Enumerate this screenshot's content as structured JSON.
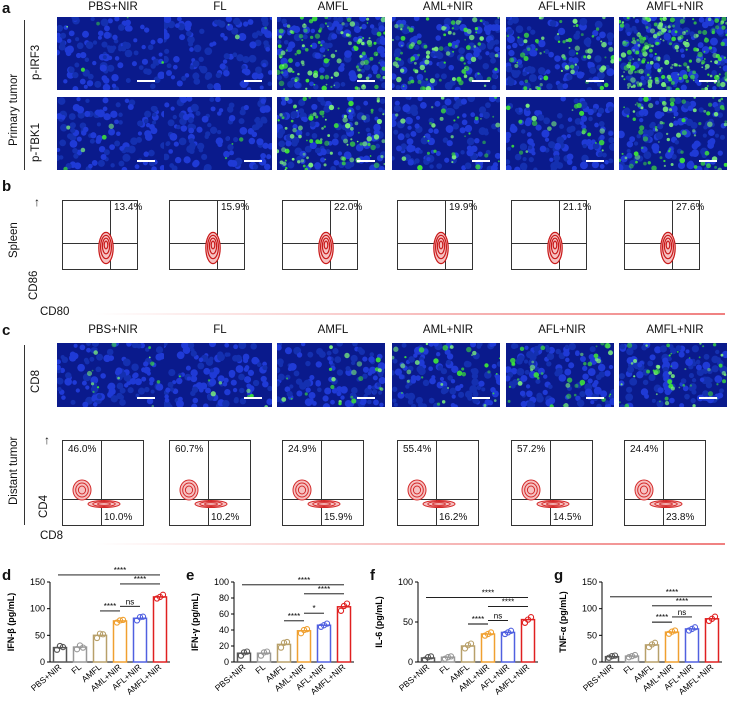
{
  "panel_labels": {
    "a": "a",
    "b": "b",
    "c": "c",
    "d": "d",
    "e": "e",
    "f": "f",
    "g": "g"
  },
  "groups": [
    "PBS+NIR",
    "FL",
    "AMFL",
    "AML+NIR",
    "AFL+NIR",
    "AMFL+NIR"
  ],
  "section_labels": {
    "primary_tumor": "Primary tumor",
    "distant_tumor": "Distant tumor",
    "spleen": "Spleen",
    "p_irf3": "p-IRF3",
    "p_tbk1": "p-TBK1",
    "cd8_stain": "CD8"
  },
  "flow_b": {
    "x_axis": "CD80",
    "y_axis": "CD86",
    "percents": [
      "13.4%",
      "15.9%",
      "22.0%",
      "19.9%",
      "21.1%",
      "27.6%"
    ]
  },
  "flow_c": {
    "x_axis": "CD8",
    "y_axis": "CD4",
    "upper_left": [
      "46.0%",
      "60.7%",
      "24.9%",
      "55.4%",
      "57.2%",
      "24.4%"
    ],
    "lower_right": [
      "10.0%",
      "10.2%",
      "15.9%",
      "16.2%",
      "14.5%",
      "23.8%"
    ]
  },
  "colors": {
    "PBS+NIR": "#555555",
    "FL": "#999999",
    "AMFL": "#b8a06a",
    "AML+NIR": "#f0a030",
    "AFL+NIR": "#5060e0",
    "AMFL+NIR": "#e02020"
  },
  "chart_data": [
    {
      "id": "d",
      "type": "bar",
      "ylabel": "IFN-β (pg/mL)",
      "ylim": [
        0,
        150
      ],
      "yticks": [
        "0",
        "50",
        "100",
        "150"
      ],
      "categories": [
        "PBS+NIR",
        "FL",
        "AMFL",
        "AML+NIR",
        "AFL+NIR",
        "AMFL+NIR"
      ],
      "values": [
        27,
        28,
        50,
        77,
        82,
        122
      ],
      "points": [
        [
          23,
          30,
          28
        ],
        [
          24,
          31,
          27
        ],
        [
          45,
          53,
          52
        ],
        [
          74,
          78,
          79
        ],
        [
          78,
          84,
          85
        ],
        [
          119,
          122,
          126
        ]
      ],
      "sig": [
        {
          "label": "****",
          "from": 0,
          "to": 5,
          "level": 3
        },
        {
          "label": "****",
          "from": 3,
          "to": 5,
          "level": 2
        },
        {
          "label": "ns",
          "from": 3,
          "to": 4,
          "level": 1
        },
        {
          "label": "****",
          "from": 2,
          "to": 3,
          "level": 0
        }
      ]
    },
    {
      "id": "e",
      "type": "bar",
      "ylabel": "IFN-γ (pg/mL)",
      "ylim": [
        0,
        100
      ],
      "yticks": [
        "0",
        "20",
        "40",
        "60",
        "80",
        "100"
      ],
      "categories": [
        "PBS+NIR",
        "FL",
        "AMFL",
        "AML+NIR",
        "AFL+NIR",
        "AMFL+NIR"
      ],
      "values": [
        11,
        11,
        22,
        39,
        46,
        69
      ],
      "points": [
        [
          8,
          12,
          13
        ],
        [
          8,
          12,
          13
        ],
        [
          18,
          24,
          25
        ],
        [
          36,
          40,
          41
        ],
        [
          44,
          46,
          48
        ],
        [
          64,
          70,
          73
        ]
      ],
      "sig": [
        {
          "label": "****",
          "from": 0,
          "to": 5,
          "level": 3
        },
        {
          "label": "****",
          "from": 3,
          "to": 5,
          "level": 2
        },
        {
          "label": "*",
          "from": 3,
          "to": 4,
          "level": 1
        },
        {
          "label": "****",
          "from": 2,
          "to": 3,
          "level": 0
        }
      ]
    },
    {
      "id": "f",
      "type": "bar",
      "ylabel": "IL-6 (pg/mL)",
      "ylim": [
        0,
        100
      ],
      "yticks": [
        "0",
        "50",
        "100"
      ],
      "categories": [
        "PBS+NIR",
        "FL",
        "AMFL",
        "AML+NIR",
        "AFL+NIR",
        "AMFL+NIR"
      ],
      "values": [
        5,
        6,
        20,
        35,
        37,
        53
      ],
      "points": [
        [
          3,
          6,
          7
        ],
        [
          4,
          6,
          7
        ],
        [
          17,
          21,
          23
        ],
        [
          33,
          35,
          37
        ],
        [
          35,
          37,
          39
        ],
        [
          49,
          53,
          56
        ]
      ],
      "sig": [
        {
          "label": "****",
          "from": 0,
          "to": 5,
          "level": 3
        },
        {
          "label": "****",
          "from": 3,
          "to": 5,
          "level": 2
        },
        {
          "label": "ns",
          "from": 3,
          "to": 4,
          "level": 1
        },
        {
          "label": "****",
          "from": 2,
          "to": 3,
          "level": 0
        }
      ]
    },
    {
      "id": "g",
      "type": "bar",
      "ylabel": "TNF-α (pg/mL)",
      "ylim": [
        0,
        150
      ],
      "yticks": [
        "0",
        "50",
        "100",
        "150"
      ],
      "categories": [
        "PBS+NIR",
        "FL",
        "AMFL",
        "AML+NIR",
        "AFL+NIR",
        "AMFL+NIR"
      ],
      "values": [
        10,
        11,
        32,
        56,
        62,
        81
      ],
      "points": [
        [
          8,
          11,
          12
        ],
        [
          9,
          11,
          13
        ],
        [
          28,
          33,
          36
        ],
        [
          53,
          57,
          59
        ],
        [
          59,
          62,
          65
        ],
        [
          77,
          81,
          85
        ]
      ],
      "sig": [
        {
          "label": "****",
          "from": 0,
          "to": 5,
          "level": 3
        },
        {
          "label": "****",
          "from": 2,
          "to": 5,
          "level": 2
        },
        {
          "label": "ns",
          "from": 3,
          "to": 4,
          "level": 1
        },
        {
          "label": "****",
          "from": 2,
          "to": 3,
          "level": 0
        }
      ]
    }
  ]
}
